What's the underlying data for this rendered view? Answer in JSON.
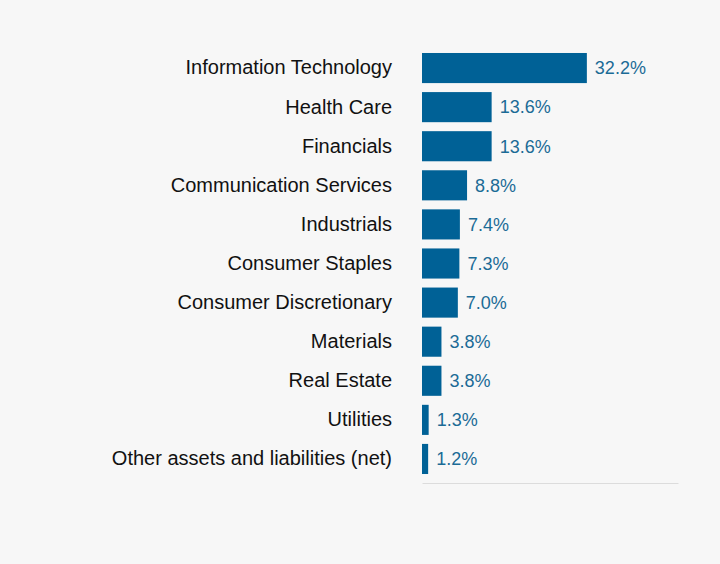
{
  "chart_data": {
    "type": "bar",
    "orientation": "horizontal",
    "categories": [
      "Information Technology",
      "Health Care",
      "Financials",
      "Communication Services",
      "Industrials",
      "Consumer Staples",
      "Consumer Discretionary",
      "Materials",
      "Real Estate",
      "Utilities",
      "Other assets and liabilities (net)"
    ],
    "values": [
      32.2,
      13.6,
      13.6,
      8.8,
      7.4,
      7.3,
      7.0,
      3.8,
      3.8,
      1.3,
      1.2
    ],
    "value_labels": [
      "32.2%",
      "13.6%",
      "13.6%",
      "8.8%",
      "7.4%",
      "7.3%",
      "7.0%",
      "3.8%",
      "3.8%",
      "1.3%",
      "1.2%"
    ],
    "color": "#006196",
    "xlim": [
      0,
      50
    ],
    "data_labels": true,
    "tick_labels": false,
    "grid": false
  }
}
